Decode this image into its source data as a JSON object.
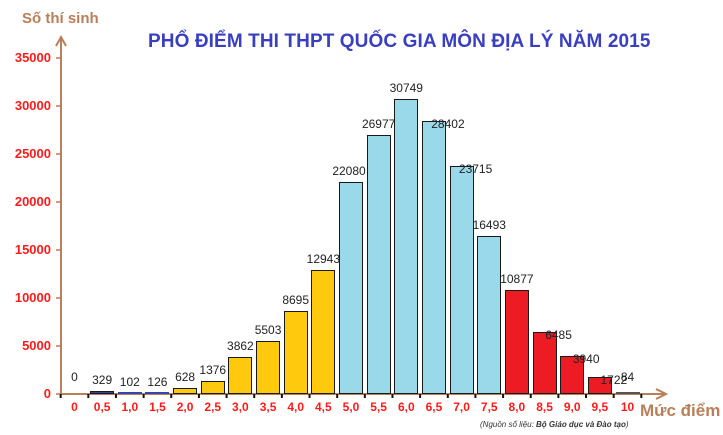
{
  "chart_data": {
    "type": "bar",
    "title": "PHỔ ĐIỂM THI THPT QUỐC GIA MÔN ĐỊA LÝ NĂM 2015",
    "xlabel": "Mức điểm",
    "ylabel": "Số thí sinh",
    "source": {
      "prefix": "(Nguồn số liệu: ",
      "name": "Bộ Giáo dục và Đào tạo",
      "suffix": ")"
    },
    "ylim": [
      0,
      35000
    ],
    "yticks": [
      "0",
      "5000",
      "10000",
      "15000",
      "20000",
      "25000",
      "30000",
      "35000"
    ],
    "grid": false,
    "categories": [
      "0",
      "0,5",
      "1,0",
      "1,5",
      "2,0",
      "2,5",
      "3,0",
      "3,5",
      "4,0",
      "4,5",
      "5,0",
      "5,5",
      "6,0",
      "6,5",
      "7,0",
      "7,5",
      "8,0",
      "8,5",
      "9,0",
      "9,5",
      "10"
    ],
    "values": [
      0,
      329,
      102,
      126,
      628,
      1376,
      3862,
      5503,
      8695,
      12943,
      22080,
      26977,
      30749,
      28402,
      23715,
      16493,
      10877,
      6485,
      3940,
      1722,
      84
    ],
    "bar_colors": [
      "#3344aa",
      "#3344aa",
      "#3344aa",
      "#3344aa",
      "#ffc90e",
      "#ffc90e",
      "#ffc90e",
      "#ffc90e",
      "#ffc90e",
      "#ffc90e",
      "#99d9ea",
      "#99d9ea",
      "#99d9ea",
      "#99d9ea",
      "#99d9ea",
      "#99d9ea",
      "#ed1c24",
      "#ed1c24",
      "#ed1c24",
      "#ed1c24",
      "#555555"
    ],
    "colors": {
      "title": "#3a3fbf",
      "axis": "#b97f5a",
      "tick_labels": "#ff1a1a"
    }
  }
}
